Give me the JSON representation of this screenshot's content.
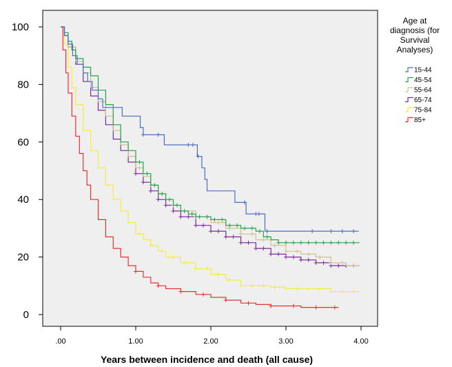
{
  "chart_data": {
    "type": "line",
    "step": true,
    "xlabel": "Years between incidence and death (all cause)",
    "ylabel": "",
    "xlim": [
      0,
      4
    ],
    "ylim": [
      0,
      100
    ],
    "x_ticks": [
      ".00",
      "1.00",
      "2.00",
      "3.00",
      "4.00"
    ],
    "y_ticks": [
      "0",
      "20",
      "40",
      "60",
      "80",
      "100"
    ],
    "grid": false,
    "legend": {
      "title_lines": [
        "Age at",
        "diagnosis (for",
        "Survival",
        "Analyses)"
      ],
      "placement": "right"
    },
    "series": [
      {
        "name": "15-44",
        "color": "#4a6ebd",
        "points": [
          [
            0,
            100
          ],
          [
            0.05,
            100
          ],
          [
            0.05,
            97
          ],
          [
            0.1,
            97
          ],
          [
            0.1,
            94
          ],
          [
            0.16,
            94
          ],
          [
            0.16,
            90
          ],
          [
            0.22,
            90
          ],
          [
            0.22,
            87
          ],
          [
            0.3,
            87
          ],
          [
            0.3,
            84
          ],
          [
            0.36,
            84
          ],
          [
            0.36,
            81
          ],
          [
            0.42,
            81
          ],
          [
            0.42,
            78
          ],
          [
            0.5,
            78
          ],
          [
            0.5,
            75
          ],
          [
            0.56,
            75
          ],
          [
            0.56,
            72
          ],
          [
            0.82,
            72
          ],
          [
            0.82,
            69
          ],
          [
            1.06,
            69
          ],
          [
            1.06,
            65
          ],
          [
            1.1,
            65
          ],
          [
            1.1,
            62.5
          ],
          [
            1.38,
            62.5
          ],
          [
            1.38,
            59
          ],
          [
            1.82,
            59
          ],
          [
            1.82,
            55
          ],
          [
            1.88,
            55
          ],
          [
            1.88,
            51
          ],
          [
            1.92,
            51
          ],
          [
            1.92,
            47
          ],
          [
            1.95,
            47
          ],
          [
            1.95,
            43
          ],
          [
            2.32,
            43
          ],
          [
            2.32,
            39
          ],
          [
            2.47,
            39
          ],
          [
            2.47,
            35
          ],
          [
            2.72,
            35
          ],
          [
            2.72,
            29
          ],
          [
            3.97,
            29
          ]
        ],
        "censor_x": [
          1.1,
          1.3,
          1.7,
          1.76,
          1.83,
          2.45,
          2.6,
          2.64,
          2.75,
          3.35,
          3.6,
          3.75,
          3.9
        ]
      },
      {
        "name": "45-54",
        "color": "#22a44a",
        "points": [
          [
            0,
            100
          ],
          [
            0.05,
            98
          ],
          [
            0.1,
            95
          ],
          [
            0.15,
            92
          ],
          [
            0.2,
            89
          ],
          [
            0.3,
            86
          ],
          [
            0.4,
            83
          ],
          [
            0.5,
            78
          ],
          [
            0.6,
            73
          ],
          [
            0.7,
            66
          ],
          [
            0.8,
            60
          ],
          [
            0.9,
            57
          ],
          [
            1.0,
            53
          ],
          [
            1.1,
            49
          ],
          [
            1.2,
            45
          ],
          [
            1.3,
            42
          ],
          [
            1.4,
            40
          ],
          [
            1.5,
            38
          ],
          [
            1.6,
            36
          ],
          [
            1.7,
            35
          ],
          [
            1.8,
            34
          ],
          [
            2.0,
            33
          ],
          [
            2.2,
            31
          ],
          [
            2.4,
            30
          ],
          [
            2.6,
            29
          ],
          [
            2.7,
            27
          ],
          [
            2.8,
            26
          ],
          [
            2.9,
            25
          ],
          [
            3.98,
            25
          ]
        ],
        "censor_x": [
          1.05,
          1.15,
          1.25,
          1.35,
          1.45,
          1.55,
          1.65,
          1.75,
          1.85,
          1.95,
          2.05,
          2.15,
          2.25,
          2.35,
          2.45,
          2.55,
          2.65,
          2.75,
          2.9,
          3.0,
          3.1,
          3.2,
          3.3,
          3.4,
          3.5,
          3.6,
          3.7,
          3.8,
          3.9
        ]
      },
      {
        "name": "55-64",
        "color": "#d0c090",
        "points": [
          [
            0,
            100
          ],
          [
            0.05,
            97
          ],
          [
            0.1,
            93
          ],
          [
            0.2,
            88
          ],
          [
            0.3,
            84
          ],
          [
            0.4,
            79
          ],
          [
            0.5,
            74
          ],
          [
            0.6,
            69
          ],
          [
            0.7,
            64
          ],
          [
            0.8,
            59
          ],
          [
            0.9,
            55
          ],
          [
            1.0,
            51
          ],
          [
            1.1,
            48
          ],
          [
            1.2,
            45
          ],
          [
            1.3,
            42
          ],
          [
            1.4,
            40
          ],
          [
            1.5,
            38
          ],
          [
            1.6,
            36
          ],
          [
            1.8,
            34
          ],
          [
            2.0,
            32
          ],
          [
            2.2,
            30
          ],
          [
            2.4,
            28
          ],
          [
            2.6,
            26
          ],
          [
            2.8,
            24
          ],
          [
            3.0,
            22
          ],
          [
            3.2,
            21
          ],
          [
            3.4,
            20
          ],
          [
            3.6,
            18
          ],
          [
            3.8,
            17
          ],
          [
            3.98,
            17
          ]
        ],
        "censor_x": [
          1.05,
          1.2,
          1.35,
          1.5,
          1.65,
          1.8,
          1.95,
          2.1,
          2.25,
          2.4,
          2.55,
          2.7,
          2.85,
          3.0,
          3.15,
          3.3,
          3.45,
          3.6,
          3.75,
          3.9
        ]
      },
      {
        "name": "65-74",
        "color": "#7b2a9c",
        "points": [
          [
            0,
            100
          ],
          [
            0.05,
            97
          ],
          [
            0.1,
            93
          ],
          [
            0.2,
            87
          ],
          [
            0.3,
            81
          ],
          [
            0.4,
            76
          ],
          [
            0.5,
            71
          ],
          [
            0.6,
            66
          ],
          [
            0.7,
            61
          ],
          [
            0.8,
            57
          ],
          [
            0.9,
            53
          ],
          [
            1.0,
            49
          ],
          [
            1.1,
            46
          ],
          [
            1.2,
            43
          ],
          [
            1.3,
            40
          ],
          [
            1.4,
            38
          ],
          [
            1.5,
            36
          ],
          [
            1.6,
            34
          ],
          [
            1.8,
            31
          ],
          [
            2.0,
            29
          ],
          [
            2.2,
            27
          ],
          [
            2.4,
            25
          ],
          [
            2.6,
            23
          ],
          [
            2.8,
            21
          ],
          [
            3.0,
            20
          ],
          [
            3.2,
            19
          ],
          [
            3.4,
            18
          ],
          [
            3.6,
            17
          ],
          [
            3.8,
            17
          ],
          [
            3.98,
            17
          ]
        ],
        "censor_x": [
          1.0,
          1.1,
          1.2,
          1.3,
          1.4,
          1.5,
          1.6,
          1.7,
          1.8,
          1.9,
          2.0,
          2.1,
          2.2,
          2.3,
          2.4,
          2.5,
          2.6,
          2.7,
          2.8,
          2.9,
          3.0,
          3.1,
          3.2,
          3.3,
          3.4,
          3.5,
          3.6,
          3.7,
          3.8,
          3.9
        ]
      },
      {
        "name": "75-84",
        "color": "#f2ee3a",
        "points": [
          [
            0,
            100
          ],
          [
            0.05,
            94
          ],
          [
            0.1,
            86
          ],
          [
            0.15,
            79
          ],
          [
            0.2,
            73
          ],
          [
            0.3,
            64
          ],
          [
            0.4,
            57
          ],
          [
            0.5,
            51
          ],
          [
            0.6,
            45
          ],
          [
            0.7,
            40
          ],
          [
            0.8,
            36
          ],
          [
            0.9,
            32
          ],
          [
            1.0,
            28
          ],
          [
            1.1,
            26
          ],
          [
            1.2,
            24
          ],
          [
            1.3,
            22
          ],
          [
            1.4,
            20
          ],
          [
            1.6,
            18
          ],
          [
            1.8,
            16
          ],
          [
            2.0,
            14
          ],
          [
            2.2,
            12
          ],
          [
            2.4,
            10
          ],
          [
            2.6,
            10
          ],
          [
            2.8,
            9.5
          ],
          [
            3.0,
            9
          ],
          [
            3.2,
            9
          ],
          [
            3.4,
            9
          ],
          [
            3.6,
            8
          ],
          [
            3.98,
            8
          ]
        ],
        "censor_x": [
          1.05,
          1.2,
          1.35,
          1.5,
          1.65,
          1.8,
          1.95,
          2.1,
          2.25,
          2.4,
          2.55,
          2.7,
          2.85,
          3.0,
          3.15,
          3.3,
          3.45,
          3.6,
          3.75,
          3.9
        ]
      },
      {
        "name": "85+",
        "color": "#e53030",
        "points": [
          [
            0,
            100
          ],
          [
            0.03,
            92
          ],
          [
            0.07,
            84
          ],
          [
            0.1,
            77
          ],
          [
            0.15,
            69
          ],
          [
            0.2,
            62
          ],
          [
            0.25,
            56
          ],
          [
            0.3,
            50
          ],
          [
            0.35,
            45
          ],
          [
            0.4,
            40
          ],
          [
            0.5,
            33
          ],
          [
            0.6,
            27
          ],
          [
            0.7,
            23
          ],
          [
            0.8,
            20
          ],
          [
            0.9,
            17
          ],
          [
            1.0,
            15
          ],
          [
            1.1,
            13
          ],
          [
            1.2,
            11
          ],
          [
            1.3,
            10
          ],
          [
            1.4,
            9
          ],
          [
            1.6,
            8
          ],
          [
            1.8,
            7
          ],
          [
            2.0,
            6
          ],
          [
            2.2,
            5
          ],
          [
            2.4,
            4
          ],
          [
            2.6,
            3.5
          ],
          [
            2.8,
            3
          ],
          [
            3.0,
            3
          ],
          [
            3.2,
            2.5
          ],
          [
            3.4,
            2.5
          ],
          [
            3.7,
            2.5
          ]
        ],
        "censor_x": [
          1.0,
          1.3,
          1.6,
          1.9,
          2.2,
          2.5,
          2.8,
          3.1,
          3.4,
          3.65
        ]
      }
    ]
  }
}
